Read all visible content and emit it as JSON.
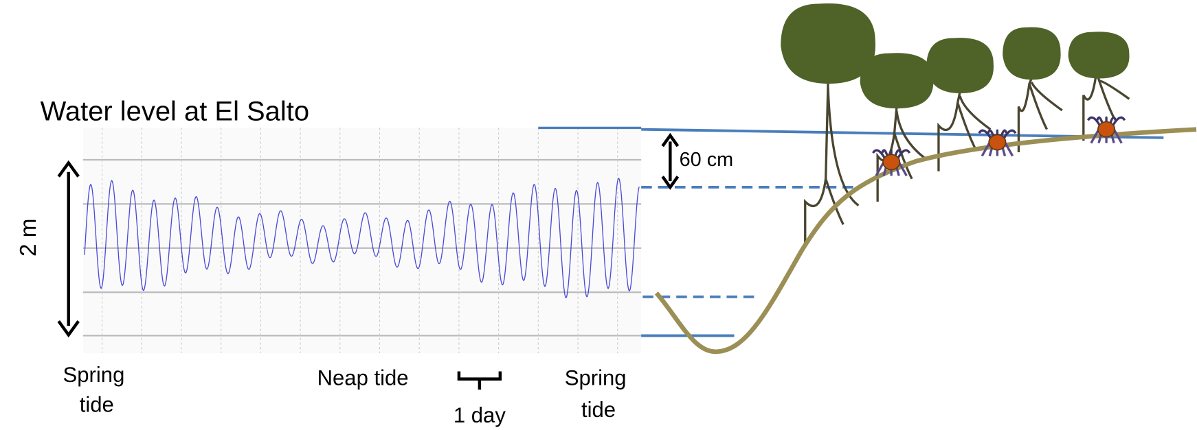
{
  "title": "Water level at El Salto",
  "range_label": "2 m",
  "difference_label": "60 cm",
  "spring_tide_left": [
    "Spring",
    "tide"
  ],
  "neap_tide": "Neap tide",
  "day_label": "1 day",
  "spring_tide_right": [
    "Spring",
    "tide"
  ]
}
